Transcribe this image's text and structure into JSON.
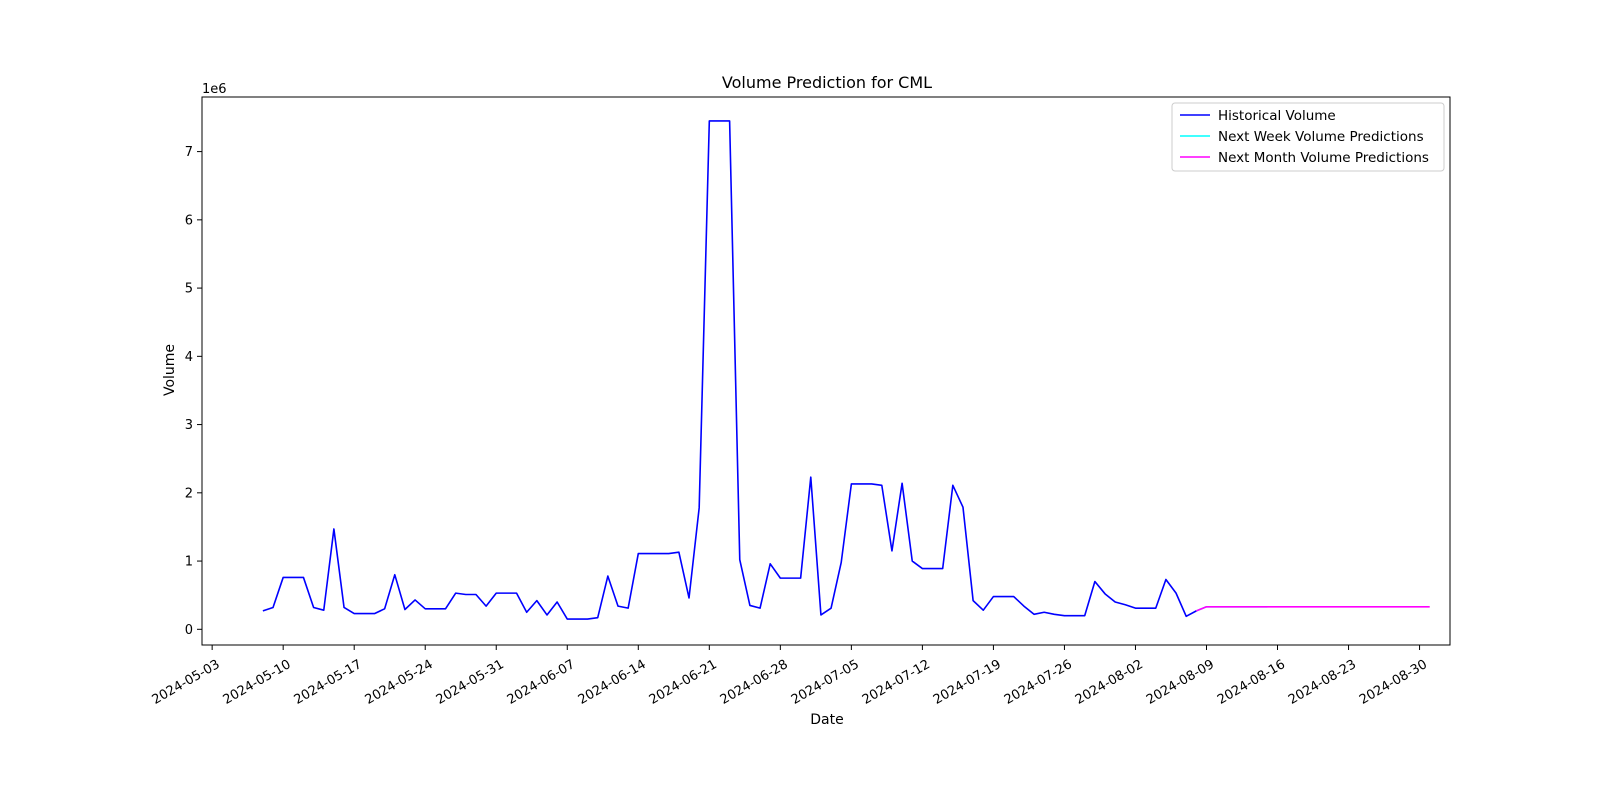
{
  "chart_data": {
    "type": "line",
    "title": "Volume Prediction for CML",
    "xlabel": "Date",
    "ylabel": "Volume",
    "y_scale_label": "1e6",
    "xlim": [
      "2024-05-02",
      "2024-09-02"
    ],
    "ylim": [
      -0.23,
      7.8
    ],
    "y_ticks": [
      0,
      1,
      2,
      3,
      4,
      5,
      6,
      7
    ],
    "x_ticks": [
      "2024-05-03",
      "2024-05-10",
      "2024-05-17",
      "2024-05-24",
      "2024-05-31",
      "2024-06-07",
      "2024-06-14",
      "2024-06-21",
      "2024-06-28",
      "2024-07-05",
      "2024-07-12",
      "2024-07-19",
      "2024-07-26",
      "2024-08-02",
      "2024-08-09",
      "2024-08-16",
      "2024-08-23",
      "2024-08-30"
    ],
    "legend_position": "top-right",
    "grid": false,
    "series": [
      {
        "name": "Historical Volume",
        "color": "#0000ff",
        "points": [
          [
            "2024-05-08",
            0.27
          ],
          [
            "2024-05-09",
            0.32
          ],
          [
            "2024-05-10",
            0.76
          ],
          [
            "2024-05-11",
            0.76
          ],
          [
            "2024-05-12",
            0.76
          ],
          [
            "2024-05-13",
            0.32
          ],
          [
            "2024-05-14",
            0.28
          ],
          [
            "2024-05-15",
            1.47
          ],
          [
            "2024-05-16",
            0.32
          ],
          [
            "2024-05-17",
            0.23
          ],
          [
            "2024-05-18",
            0.23
          ],
          [
            "2024-05-19",
            0.23
          ],
          [
            "2024-05-20",
            0.3
          ],
          [
            "2024-05-21",
            0.8
          ],
          [
            "2024-05-22",
            0.29
          ],
          [
            "2024-05-23",
            0.43
          ],
          [
            "2024-05-24",
            0.3
          ],
          [
            "2024-05-25",
            0.3
          ],
          [
            "2024-05-26",
            0.3
          ],
          [
            "2024-05-27",
            0.53
          ],
          [
            "2024-05-28",
            0.51
          ],
          [
            "2024-05-29",
            0.51
          ],
          [
            "2024-05-30",
            0.34
          ],
          [
            "2024-05-31",
            0.53
          ],
          [
            "2024-06-01",
            0.53
          ],
          [
            "2024-06-02",
            0.53
          ],
          [
            "2024-06-03",
            0.25
          ],
          [
            "2024-06-04",
            0.42
          ],
          [
            "2024-06-05",
            0.21
          ],
          [
            "2024-06-06",
            0.4
          ],
          [
            "2024-06-07",
            0.15
          ],
          [
            "2024-06-08",
            0.15
          ],
          [
            "2024-06-09",
            0.15
          ],
          [
            "2024-06-10",
            0.17
          ],
          [
            "2024-06-11",
            0.78
          ],
          [
            "2024-06-12",
            0.34
          ],
          [
            "2024-06-13",
            0.31
          ],
          [
            "2024-06-14",
            1.11
          ],
          [
            "2024-06-15",
            1.11
          ],
          [
            "2024-06-16",
            1.11
          ],
          [
            "2024-06-17",
            1.11
          ],
          [
            "2024-06-18",
            1.13
          ],
          [
            "2024-06-19",
            0.46
          ],
          [
            "2024-06-20",
            1.78
          ],
          [
            "2024-06-21",
            7.45
          ],
          [
            "2024-06-22",
            7.45
          ],
          [
            "2024-06-23",
            7.45
          ],
          [
            "2024-06-24",
            1.02
          ],
          [
            "2024-06-25",
            0.35
          ],
          [
            "2024-06-26",
            0.31
          ],
          [
            "2024-06-27",
            0.96
          ],
          [
            "2024-06-28",
            0.75
          ],
          [
            "2024-06-29",
            0.75
          ],
          [
            "2024-06-30",
            0.75
          ],
          [
            "2024-07-01",
            2.23
          ],
          [
            "2024-07-02",
            0.21
          ],
          [
            "2024-07-03",
            0.31
          ],
          [
            "2024-07-04",
            0.98
          ],
          [
            "2024-07-05",
            2.13
          ],
          [
            "2024-07-06",
            2.13
          ],
          [
            "2024-07-07",
            2.13
          ],
          [
            "2024-07-08",
            2.11
          ],
          [
            "2024-07-09",
            1.15
          ],
          [
            "2024-07-10",
            2.14
          ],
          [
            "2024-07-11",
            1.0
          ],
          [
            "2024-07-12",
            0.89
          ],
          [
            "2024-07-13",
            0.89
          ],
          [
            "2024-07-14",
            0.89
          ],
          [
            "2024-07-15",
            2.11
          ],
          [
            "2024-07-16",
            1.79
          ],
          [
            "2024-07-17",
            0.42
          ],
          [
            "2024-07-18",
            0.28
          ],
          [
            "2024-07-19",
            0.48
          ],
          [
            "2024-07-20",
            0.48
          ],
          [
            "2024-07-21",
            0.48
          ],
          [
            "2024-07-22",
            0.34
          ],
          [
            "2024-07-23",
            0.22
          ],
          [
            "2024-07-24",
            0.25
          ],
          [
            "2024-07-25",
            0.22
          ],
          [
            "2024-07-26",
            0.2
          ],
          [
            "2024-07-27",
            0.2
          ],
          [
            "2024-07-28",
            0.2
          ],
          [
            "2024-07-29",
            0.7
          ],
          [
            "2024-07-30",
            0.52
          ],
          [
            "2024-07-31",
            0.4
          ],
          [
            "2024-08-01",
            0.36
          ],
          [
            "2024-08-02",
            0.31
          ],
          [
            "2024-08-03",
            0.31
          ],
          [
            "2024-08-04",
            0.31
          ],
          [
            "2024-08-05",
            0.73
          ],
          [
            "2024-08-06",
            0.53
          ],
          [
            "2024-08-07",
            0.19
          ],
          [
            "2024-08-08",
            0.27
          ]
        ]
      },
      {
        "name": "Next Week Volume Predictions",
        "color": "#00ffff",
        "points": [
          [
            "2024-08-08",
            0.27
          ],
          [
            "2024-08-09",
            0.33
          ],
          [
            "2024-08-10",
            0.33
          ],
          [
            "2024-08-11",
            0.33
          ],
          [
            "2024-08-12",
            0.33
          ],
          [
            "2024-08-13",
            0.33
          ],
          [
            "2024-08-14",
            0.33
          ],
          [
            "2024-08-15",
            0.33
          ]
        ]
      },
      {
        "name": "Next Month Volume Predictions",
        "color": "#ff00ff",
        "points": [
          [
            "2024-08-08",
            0.27
          ],
          [
            "2024-08-09",
            0.33
          ],
          [
            "2024-08-15",
            0.33
          ],
          [
            "2024-08-22",
            0.33
          ],
          [
            "2024-08-29",
            0.33
          ],
          [
            "2024-08-31",
            0.33
          ]
        ]
      }
    ]
  }
}
